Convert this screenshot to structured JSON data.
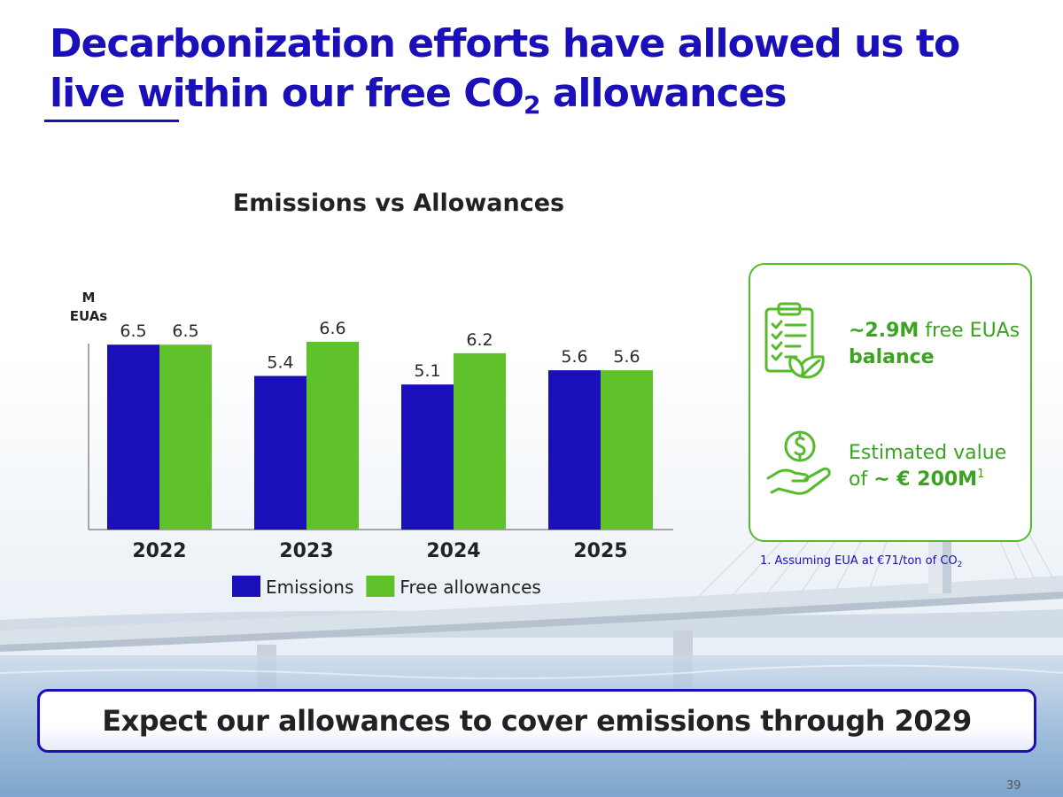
{
  "slide": {
    "title_line1": "Decarbonization efforts have allowed us to",
    "title_line2_pre": "live within our free CO",
    "title_line2_sub": "2",
    "title_line2_post": " allowances",
    "page_number": "39"
  },
  "chart_data": {
    "type": "bar",
    "title": "Emissions vs Allowances",
    "unit_label_line1": "M",
    "unit_label_line2": "EUAs",
    "categories": [
      "2022",
      "2023",
      "2024",
      "2025"
    ],
    "series": [
      {
        "name": "Emissions",
        "color": "#1a0fb8",
        "values": [
          6.5,
          5.4,
          5.1,
          5.6
        ]
      },
      {
        "name": "Free allowances",
        "color": "#5fc22a",
        "values": [
          6.5,
          6.6,
          6.2,
          5.6
        ]
      }
    ],
    "ylim": [
      0,
      6.6
    ],
    "grid": false,
    "legend_position": "bottom"
  },
  "card": {
    "balance_value": "~2.9M",
    "balance_text": " free EUAs",
    "balance_line2": "balance",
    "value_line1": "Estimated value",
    "value_line2_pre": "of ",
    "value_line2_bold": "~ € 200M",
    "value_line2_sup": "1",
    "footnote_main": "1. Assuming EUA at €71/ton of CO",
    "footnote_sub": "2",
    "accent_color": "#55bb2b"
  },
  "callout": {
    "text": "Expect our allowances to cover emissions through 2029"
  },
  "colors": {
    "brand_blue": "#1a0fb8",
    "brand_green": "#5fc22a"
  }
}
